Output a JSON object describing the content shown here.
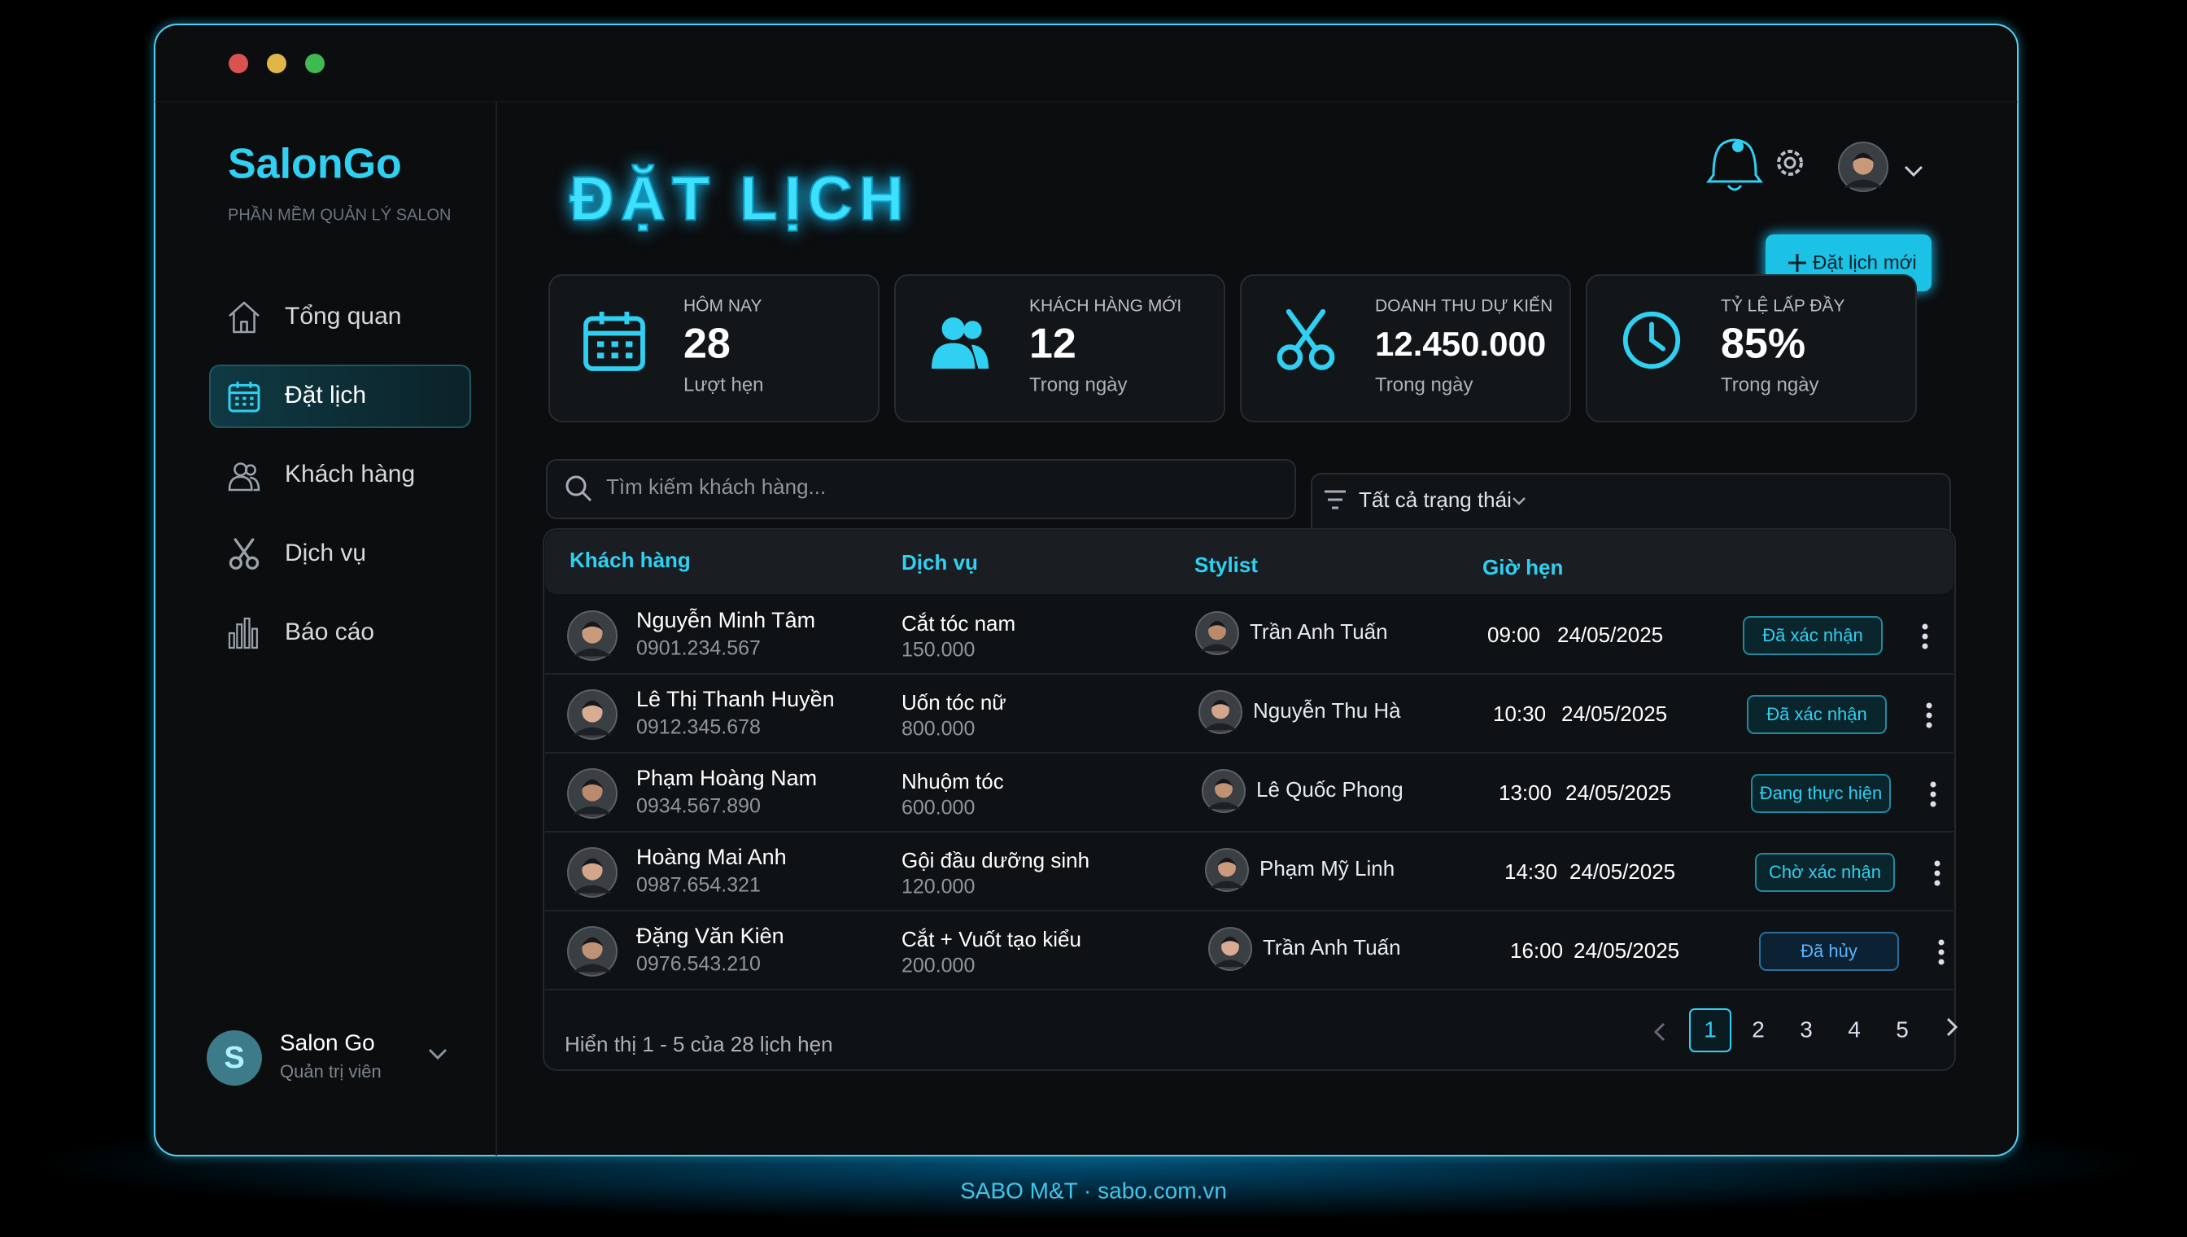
{
  "brand": {
    "name": "SalonGo",
    "tagline": "PHẦN MỀM QUẢN LÝ SALON"
  },
  "nav": [
    "Tổng quan",
    "Đặt lịch",
    "Khách hàng",
    "Dịch vụ",
    "Báo cáo"
  ],
  "user": {
    "initial": "S",
    "name": "Salon Go",
    "role": "Quản trị viên"
  },
  "header": {
    "title": "ĐẶT LỊCH",
    "new_button": "Đặt lịch mới"
  },
  "stats": [
    {
      "label": "HÔM NAY",
      "value": "28",
      "note": "Lượt hẹn"
    },
    {
      "label": "KHÁCH HÀNG MỚI",
      "value": "12",
      "note": "Trong ngày"
    },
    {
      "label": "DOANH THU DỰ KIẾN",
      "value": "12.450.000",
      "note": "Trong ngày"
    },
    {
      "label": "TỶ LỆ LẤP ĐẦY",
      "value": "85%",
      "note": "Trong ngày"
    }
  ],
  "search": {
    "placeholder": "Tìm kiếm khách hàng..."
  },
  "filter": {
    "label": "Tất cả trạng thái"
  },
  "table": {
    "columns": [
      "Khách hàng",
      "Dịch vụ",
      "Stylist",
      "Giờ hẹn"
    ],
    "rows": [
      {
        "customer": "Nguyễn Minh Tâm",
        "phone": "0901.234.567",
        "service": "Cắt tóc nam",
        "price": "150.000",
        "stylist": "Trần Anh Tuấn",
        "time": "09:00",
        "date": "24/05/2025",
        "status": "Đã xác nhận"
      },
      {
        "customer": "Lê Thị Thanh Huyền",
        "phone": "0912.345.678",
        "service": "Uốn tóc nữ",
        "price": "800.000",
        "stylist": "Nguyễn Thu Hà",
        "time": "10:30",
        "date": "24/05/2025",
        "status": "Đã xác nhận"
      },
      {
        "customer": "Phạm Hoàng Nam",
        "phone": "0934.567.890",
        "service": "Nhuộm tóc",
        "price": "600.000",
        "stylist": "Lê Quốc Phong",
        "time": "13:00",
        "date": "24/05/2025",
        "status": "Đang thực hiện"
      },
      {
        "customer": "Hoàng Mai Anh",
        "phone": "0987.654.321",
        "service": "Gội đầu dưỡng sinh",
        "price": "120.000",
        "stylist": "Phạm Mỹ Linh",
        "time": "14:30",
        "date": "24/05/2025",
        "status": "Chờ xác nhận"
      },
      {
        "customer": "Đặng Văn Kiên",
        "phone": "0976.543.210",
        "service": "Cắt + Vuốt tạo kiểu",
        "price": "200.000",
        "stylist": "Trần Anh Tuấn",
        "time": "16:00",
        "date": "24/05/2025",
        "status": "Đã hủy"
      }
    ]
  },
  "footer": {
    "summary": "Hiển thị 1 - 5 của 28 lịch hẹn",
    "pages": [
      1,
      2,
      3,
      4,
      5
    ],
    "current": 0
  },
  "credit": "SABO M&T · sabo.com.vn"
}
